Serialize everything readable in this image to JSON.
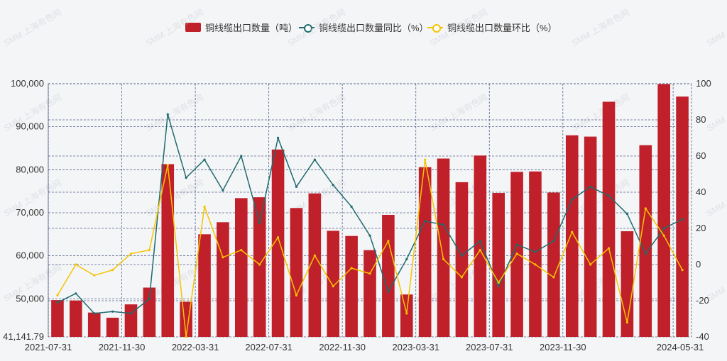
{
  "colors": {
    "bar": "#c0202a",
    "yoy": "#1f6b6f",
    "mom": "#f5c400",
    "grid": "#3a4a7a",
    "axis_text": "#333333"
  },
  "legend": [
    {
      "name": "铜线缆出口数量（吨）",
      "kind": "bar"
    },
    {
      "name": "铜线缆出口数量同比（%）",
      "kind": "line"
    },
    {
      "name": "铜线缆出口数量环比（%）",
      "kind": "line"
    }
  ],
  "watermark": "SMM 上海有色网",
  "chart_data": {
    "type": "bar",
    "x_ticks": [
      "2021-07-31",
      "2021-11-30",
      "2022-03-31",
      "2022-07-31",
      "2022-11-30",
      "2023-03-31",
      "2023-07-31",
      "2023-11-30",
      "2024-05-31"
    ],
    "categories": [
      "2021-07-31",
      "2021-08-31",
      "2021-09-30",
      "2021-10-31",
      "2021-11-30",
      "2021-12-31",
      "2022-01-31",
      "2022-02-28",
      "2022-03-31",
      "2022-04-30",
      "2022-05-31",
      "2022-06-30",
      "2022-07-31",
      "2022-08-31",
      "2022-09-30",
      "2022-10-31",
      "2022-11-30",
      "2022-12-31",
      "2023-01-31",
      "2023-02-28",
      "2023-03-31",
      "2023-04-30",
      "2023-05-31",
      "2023-06-30",
      "2023-07-31",
      "2023-08-31",
      "2023-09-30",
      "2023-10-31",
      "2023-11-30",
      "2023-12-31",
      "2024-01-31",
      "2024-02-29",
      "2024-03-31",
      "2024-04-30",
      "2024-05-31"
    ],
    "series": [
      {
        "name": "铜线缆出口数量（吨）",
        "type": "bar",
        "axis": "left",
        "values": [
          49700,
          49600,
          46800,
          45600,
          48700,
          52600,
          81300,
          49300,
          65000,
          67800,
          73400,
          73600,
          84700,
          71100,
          74500,
          65800,
          64600,
          61300,
          69500,
          51000,
          80600,
          82600,
          77100,
          83300,
          74600,
          79500,
          79600,
          74700,
          88000,
          87700,
          95800,
          65700,
          85700,
          99900,
          97000
        ]
      },
      {
        "name": "铜线缆出口数量同比（%）",
        "type": "line",
        "axis": "right",
        "values": [
          -21,
          -16,
          -27,
          -26,
          -27,
          -19,
          83,
          48,
          58,
          41,
          60,
          23,
          70,
          43,
          58,
          44,
          32,
          16,
          -15,
          3,
          24,
          22,
          5,
          13,
          -12,
          11,
          7,
          13,
          36,
          43,
          38,
          28,
          6,
          20,
          25
        ]
      },
      {
        "name": "铜线缆出口数量环比（%）",
        "type": "line",
        "axis": "right",
        "values": [
          -17,
          0,
          -6,
          -3,
          6,
          8,
          55,
          -40,
          32,
          4,
          8,
          0,
          15,
          -17,
          5,
          -12,
          -2,
          -5,
          13,
          -27,
          58,
          3,
          -7,
          8,
          -10,
          6,
          0,
          -7,
          18,
          0,
          9,
          -32,
          31,
          16,
          -3
        ]
      }
    ],
    "y_left": {
      "min": 41141.79,
      "max": 100000,
      "ticks": [
        41141.79,
        50000,
        60000,
        70000,
        80000,
        90000,
        100000
      ],
      "tick_labels": [
        "41,141.79",
        "50,000",
        "60,000",
        "70,000",
        "80,000",
        "90,000",
        "100,000"
      ]
    },
    "y_right": {
      "min": -40,
      "max": 100,
      "ticks": [
        -40,
        -20,
        0,
        20,
        40,
        60,
        80,
        100
      ],
      "tick_labels": [
        "-40",
        "-20",
        "0",
        "20",
        "40",
        "60",
        "80",
        "100"
      ]
    },
    "grid": true,
    "legend_position": "top"
  }
}
